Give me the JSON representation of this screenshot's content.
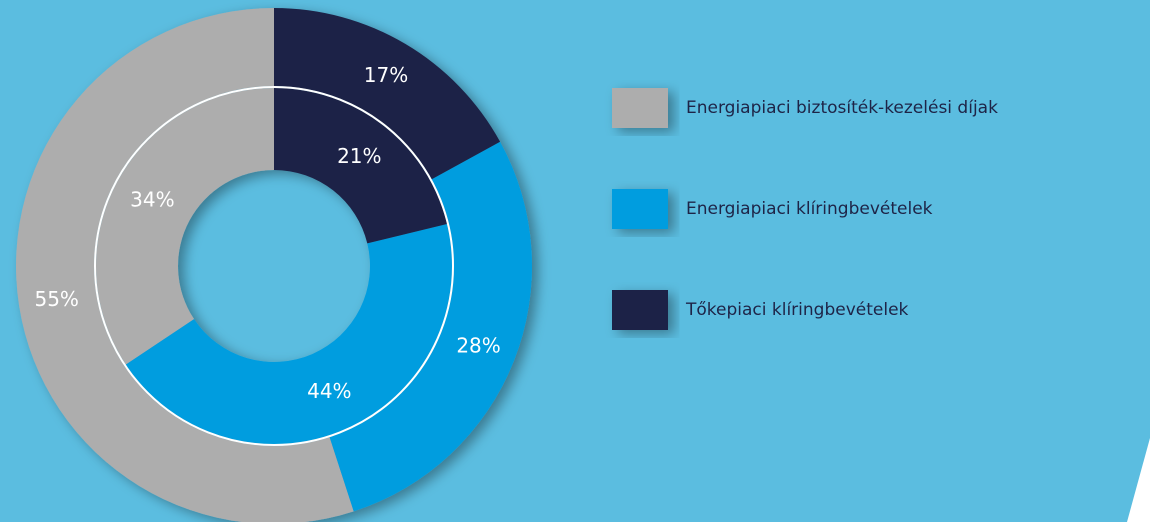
{
  "chart_data": {
    "type": "donut",
    "categories": [
      "Energiapiaci biztosíték-kezelési díjak",
      "Energiapiaci klíringbevételek",
      "Tőkepiaci klíringbevételek"
    ],
    "colors": [
      "#adadad",
      "#069ddf",
      "#1e2447"
    ],
    "series": [
      {
        "values": [
          55,
          28,
          17
        ],
        "value_labels": [
          "55%",
          "28%",
          "17%"
        ]
      },
      {
        "values": [
          34,
          44,
          21
        ],
        "value_labels": [
          "34%",
          "44%",
          "21%"
        ]
      }
    ]
  }
}
